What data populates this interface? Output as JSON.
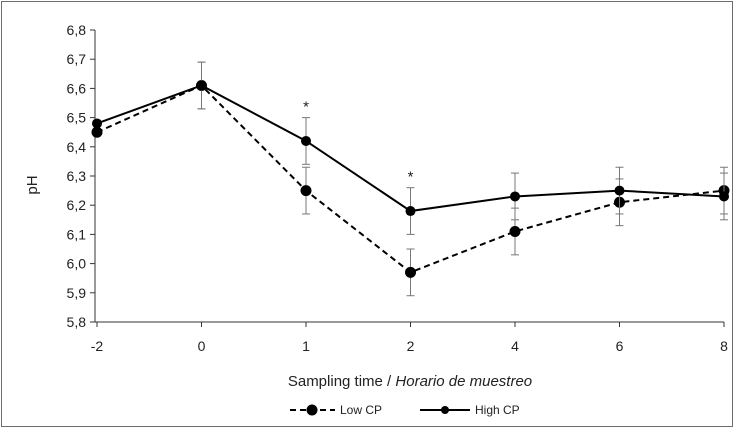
{
  "chart_data": {
    "type": "line",
    "title": "",
    "ylabel": "pH",
    "xlabel": "Sampling time",
    "xlabel_italic": "Horario de muestreo",
    "xlabel_separator": " / ",
    "categories": [
      "-2",
      "0",
      "1",
      "2",
      "4",
      "6",
      "8"
    ],
    "ylim": [
      5.8,
      6.8
    ],
    "yticks": [
      "5,8",
      "5,9",
      "6,0",
      "6,1",
      "6,2",
      "6,3",
      "6,4",
      "6,5",
      "6,6",
      "6,7",
      "6,8"
    ],
    "grid": false,
    "legend_position": "bottom",
    "series": [
      {
        "name": "Low CP",
        "line_style": "dashed",
        "color": "#000000",
        "values": [
          6.45,
          6.61,
          6.25,
          5.97,
          6.11,
          6.21,
          6.25
        ],
        "error": [
          0.0,
          0.08,
          0.08,
          0.08,
          0.08,
          0.08,
          0.08
        ]
      },
      {
        "name": "High CP",
        "line_style": "solid",
        "color": "#000000",
        "values": [
          6.48,
          6.61,
          6.42,
          6.18,
          6.23,
          6.25,
          6.23
        ],
        "error": [
          0.0,
          0.08,
          0.08,
          0.08,
          0.08,
          0.08,
          0.08
        ]
      }
    ],
    "annotations": [
      {
        "category": "1",
        "text": "*"
      },
      {
        "category": "2",
        "text": "*"
      }
    ]
  }
}
